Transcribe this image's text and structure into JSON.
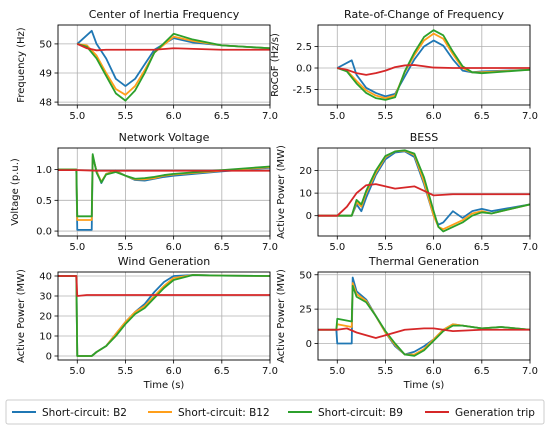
{
  "colors": {
    "B2": "#1f77b4",
    "B12": "#ff9f1a",
    "B9": "#2ca02c",
    "trip": "#d62728"
  },
  "legend": [
    {
      "label": "Short-circuit: B2",
      "color": "#1f77b4"
    },
    {
      "label": "Short-circuit: B12",
      "color": "#ff9f1a"
    },
    {
      "label": "Short-circuit: B9",
      "color": "#2ca02c"
    },
    {
      "label": "Generation trip",
      "color": "#d62728"
    }
  ],
  "chart_data": [
    {
      "type": "line",
      "title": "Center of Inertia Frequency",
      "xlabel": "",
      "ylabel": "Frequency (Hz)",
      "xlim": [
        4.8,
        7.0
      ],
      "ylim": [
        47.9,
        50.65
      ],
      "xticks": [
        5.0,
        5.5,
        6.0,
        6.5,
        7.0
      ],
      "yticks": [
        48,
        49,
        50
      ],
      "grid": true,
      "tick_decimals": 0,
      "series": [
        {
          "name": "Short-circuit: B2",
          "key": "B2",
          "x": [
            5.0,
            5.15,
            5.2,
            5.3,
            5.4,
            5.5,
            5.6,
            5.7,
            5.8,
            6.0,
            6.2,
            6.5,
            7.0
          ],
          "y": [
            50,
            50.45,
            50.0,
            49.5,
            48.8,
            48.55,
            48.8,
            49.3,
            49.8,
            50.2,
            50.05,
            49.95,
            49.85
          ]
        },
        {
          "name": "Short-circuit: B12",
          "key": "B12",
          "x": [
            5.0,
            5.1,
            5.2,
            5.3,
            5.4,
            5.5,
            5.6,
            5.7,
            5.8,
            6.0,
            6.2,
            6.5,
            7.0
          ],
          "y": [
            50,
            49.95,
            49.6,
            49.0,
            48.45,
            48.25,
            48.55,
            49.1,
            49.7,
            50.25,
            50.1,
            49.95,
            49.85
          ]
        },
        {
          "name": "Short-circuit: B9",
          "key": "B9",
          "x": [
            5.0,
            5.1,
            5.2,
            5.3,
            5.4,
            5.5,
            5.6,
            5.7,
            5.8,
            6.0,
            6.2,
            6.5,
            7.0
          ],
          "y": [
            50,
            49.9,
            49.5,
            48.9,
            48.3,
            48.05,
            48.4,
            49.0,
            49.7,
            50.35,
            50.15,
            49.95,
            49.85
          ]
        },
        {
          "name": "Generation trip",
          "key": "trip",
          "x": [
            5.0,
            5.1,
            5.2,
            5.3,
            5.5,
            5.8,
            6.0,
            6.5,
            7.0
          ],
          "y": [
            50,
            49.85,
            49.78,
            49.8,
            49.8,
            49.8,
            49.85,
            49.8,
            49.8
          ]
        }
      ]
    },
    {
      "type": "line",
      "title": "Rate-of-Change of Frequency",
      "xlabel": "",
      "ylabel": "RoCoF (Hz/s)",
      "xlim": [
        4.8,
        7.0
      ],
      "ylim": [
        -4.3,
        5.0
      ],
      "xticks": [
        5.0,
        5.5,
        6.0,
        6.5,
        7.0
      ],
      "yticks": [
        -2.5,
        0.0,
        2.5
      ],
      "grid": true,
      "tick_decimals": 1,
      "series": [
        {
          "name": "Short-circuit: B2",
          "key": "B2",
          "x": [
            5.0,
            5.15,
            5.2,
            5.3,
            5.4,
            5.5,
            5.6,
            5.7,
            5.8,
            5.9,
            6.0,
            6.1,
            6.2,
            6.3,
            6.4,
            6.5,
            7.0
          ],
          "y": [
            0,
            0.9,
            -0.8,
            -2.3,
            -2.9,
            -3.3,
            -3.0,
            -1.0,
            1.0,
            2.5,
            3.2,
            2.6,
            1.0,
            -0.3,
            -0.5,
            -0.4,
            -0.2
          ]
        },
        {
          "name": "Short-circuit: B12",
          "key": "B12",
          "x": [
            5.0,
            5.1,
            5.2,
            5.3,
            5.4,
            5.5,
            5.6,
            5.7,
            5.8,
            5.9,
            6.0,
            6.1,
            6.2,
            6.3,
            6.4,
            6.5,
            7.0
          ],
          "y": [
            0,
            -0.3,
            -1.5,
            -2.6,
            -3.2,
            -3.5,
            -3.2,
            -0.5,
            1.5,
            3.2,
            4.0,
            3.4,
            1.6,
            0,
            -0.5,
            -0.5,
            -0.2
          ]
        },
        {
          "name": "Short-circuit: B9",
          "key": "B9",
          "x": [
            5.0,
            5.1,
            5.2,
            5.3,
            5.4,
            5.5,
            5.6,
            5.7,
            5.8,
            5.9,
            6.0,
            6.1,
            6.2,
            6.3,
            6.4,
            6.5,
            7.0
          ],
          "y": [
            0,
            -0.4,
            -1.8,
            -2.9,
            -3.5,
            -3.7,
            -3.4,
            -0.4,
            1.8,
            3.6,
            4.4,
            3.8,
            1.9,
            0.2,
            -0.5,
            -0.6,
            -0.2
          ]
        },
        {
          "name": "Generation trip",
          "key": "trip",
          "x": [
            5.0,
            5.1,
            5.2,
            5.3,
            5.4,
            5.5,
            5.6,
            5.7,
            5.8,
            5.9,
            6.0,
            6.2,
            6.5,
            7.0
          ],
          "y": [
            0,
            -0.2,
            -0.6,
            -0.8,
            -0.6,
            -0.3,
            0.1,
            0.3,
            0.35,
            0.2,
            0.05,
            0,
            0,
            0
          ]
        }
      ]
    },
    {
      "type": "line",
      "title": "Network Voltage",
      "xlabel": "",
      "ylabel": "Voltage (p.u.)",
      "xlim": [
        4.8,
        7.0
      ],
      "ylim": [
        -0.08,
        1.35
      ],
      "xticks": [
        5.0,
        5.5,
        6.0,
        6.5,
        7.0
      ],
      "yticks": [
        0.0,
        0.5,
        1.0
      ],
      "grid": true,
      "tick_decimals": 1,
      "series": [
        {
          "name": "Short-circuit: B2",
          "key": "B2",
          "x": [
            4.8,
            4.99,
            5.0,
            5.15,
            5.16,
            5.2,
            5.25,
            5.3,
            5.4,
            5.5,
            5.6,
            5.7,
            5.8,
            5.9,
            6.0,
            6.5,
            7.0
          ],
          "y": [
            1.0,
            1.0,
            0.02,
            0.02,
            1.2,
            0.98,
            0.78,
            0.93,
            0.98,
            0.9,
            0.83,
            0.82,
            0.85,
            0.88,
            0.9,
            0.97,
            1.03
          ]
        },
        {
          "name": "Short-circuit: B12",
          "key": "B12",
          "x": [
            4.8,
            4.99,
            5.0,
            5.15,
            5.16,
            5.2,
            5.25,
            5.3,
            5.4,
            5.5,
            5.6,
            5.7,
            5.8,
            5.9,
            6.0,
            6.5,
            7.0
          ],
          "y": [
            1.0,
            1.0,
            0.18,
            0.18,
            1.22,
            0.97,
            0.8,
            0.93,
            0.97,
            0.9,
            0.84,
            0.84,
            0.86,
            0.9,
            0.92,
            0.98,
            1.04
          ]
        },
        {
          "name": "Short-circuit: B9",
          "key": "B9",
          "x": [
            4.8,
            4.99,
            5.0,
            5.15,
            5.16,
            5.2,
            5.25,
            5.3,
            5.4,
            5.5,
            5.6,
            5.7,
            5.8,
            5.9,
            6.0,
            6.5,
            7.0
          ],
          "y": [
            1.0,
            1.0,
            0.24,
            0.24,
            1.25,
            0.95,
            0.79,
            0.92,
            0.96,
            0.9,
            0.85,
            0.86,
            0.88,
            0.91,
            0.93,
            0.99,
            1.05
          ]
        },
        {
          "name": "Generation trip",
          "key": "trip",
          "x": [
            4.8,
            5.0,
            5.2,
            5.5,
            6.0,
            6.5,
            7.0
          ],
          "y": [
            0.99,
            0.99,
            0.98,
            0.98,
            0.98,
            0.98,
            0.98
          ]
        }
      ]
    },
    {
      "type": "line",
      "title": "BESS",
      "xlabel": "",
      "ylabel": "Active Power (MW)",
      "xlim": [
        4.8,
        7.0
      ],
      "ylim": [
        -9,
        30
      ],
      "xticks": [
        5.0,
        5.5,
        6.0,
        6.5,
        7.0
      ],
      "yticks": [
        0,
        10,
        20
      ],
      "grid": true,
      "tick_decimals": 0,
      "series": [
        {
          "name": "Short-circuit: B2",
          "key": "B2",
          "x": [
            4.8,
            5.0,
            5.15,
            5.2,
            5.25,
            5.3,
            5.4,
            5.5,
            5.6,
            5.7,
            5.8,
            5.9,
            6.0,
            6.05,
            6.1,
            6.2,
            6.3,
            6.4,
            6.5,
            6.6,
            7.0
          ],
          "y": [
            0,
            0,
            0,
            5,
            2,
            8,
            18,
            25,
            28,
            28.5,
            26,
            14,
            0,
            -4,
            -3,
            2,
            -1,
            2,
            3,
            2,
            5
          ]
        },
        {
          "name": "Short-circuit: B12",
          "key": "B12",
          "x": [
            4.8,
            5.0,
            5.15,
            5.2,
            5.25,
            5.3,
            5.4,
            5.5,
            5.6,
            5.7,
            5.8,
            5.9,
            6.0,
            6.05,
            6.1,
            6.2,
            6.3,
            6.4,
            6.5,
            6.6,
            7.0
          ],
          "y": [
            0,
            0,
            0,
            6,
            4,
            10,
            19,
            26,
            28.5,
            28.8,
            27,
            15,
            0,
            -5,
            -6,
            -4,
            -2,
            1,
            2,
            1,
            5
          ]
        },
        {
          "name": "Short-circuit: B9",
          "key": "B9",
          "x": [
            4.8,
            5.0,
            5.15,
            5.2,
            5.25,
            5.3,
            5.4,
            5.5,
            5.6,
            5.7,
            5.8,
            5.9,
            6.0,
            6.05,
            6.1,
            6.2,
            6.3,
            6.4,
            6.5,
            6.6,
            7.0
          ],
          "y": [
            0,
            0,
            0,
            7,
            5,
            11,
            20,
            26.5,
            28.5,
            29,
            27.5,
            17,
            2,
            -5,
            -7,
            -5,
            -3,
            0,
            1.5,
            1,
            5
          ]
        },
        {
          "name": "Generation trip",
          "key": "trip",
          "x": [
            4.8,
            5.0,
            5.1,
            5.2,
            5.3,
            5.4,
            5.5,
            5.6,
            5.7,
            5.8,
            5.9,
            6.0,
            6.2,
            6.5,
            7.0
          ],
          "y": [
            0,
            0,
            4,
            10,
            13.5,
            14,
            13,
            12,
            12.5,
            13,
            11,
            9,
            9.5,
            9.5,
            9.5
          ]
        }
      ]
    },
    {
      "type": "line",
      "title": "Wind Generation",
      "xlabel": "Time (s)",
      "ylabel": "Active Power (MW)",
      "xlim": [
        4.8,
        7.0
      ],
      "ylim": [
        -2,
        42
      ],
      "xticks": [
        5.0,
        5.5,
        6.0,
        6.5,
        7.0
      ],
      "yticks": [
        0,
        10,
        20,
        30,
        40
      ],
      "grid": true,
      "tick_decimals": 0,
      "series": [
        {
          "name": "Short-circuit: B2",
          "key": "B2",
          "x": [
            4.8,
            4.99,
            5.0,
            5.15,
            5.2,
            5.3,
            5.4,
            5.5,
            5.6,
            5.7,
            5.8,
            5.9,
            6.0,
            6.2,
            6.5,
            7.0
          ],
          "y": [
            40,
            40,
            0,
            0,
            2,
            5,
            11,
            17,
            22,
            26,
            32,
            37,
            40,
            40.5,
            40.2,
            40
          ]
        },
        {
          "name": "Short-circuit: B12",
          "key": "B12",
          "x": [
            4.8,
            4.99,
            5.0,
            5.15,
            5.2,
            5.3,
            5.4,
            5.5,
            5.6,
            5.7,
            5.8,
            5.9,
            6.0,
            6.2,
            6.5,
            7.0
          ],
          "y": [
            40,
            40,
            0,
            0,
            2,
            5,
            11,
            17,
            22,
            25,
            30,
            35,
            39,
            40.5,
            40.2,
            40
          ]
        },
        {
          "name": "Short-circuit: B9",
          "key": "B9",
          "x": [
            4.8,
            4.99,
            5.0,
            5.15,
            5.2,
            5.3,
            5.4,
            5.5,
            5.6,
            5.7,
            5.8,
            5.9,
            6.0,
            6.2,
            6.5,
            7.0
          ],
          "y": [
            40,
            40,
            0,
            0,
            2,
            5,
            10,
            16,
            21,
            24,
            29,
            34,
            38,
            40.5,
            40.2,
            40
          ]
        },
        {
          "name": "Generation trip",
          "key": "trip",
          "x": [
            4.8,
            4.99,
            5.0,
            5.1,
            5.5,
            6.0,
            6.5,
            7.0
          ],
          "y": [
            40,
            40,
            30,
            30.5,
            30.5,
            30.5,
            30.5,
            30.5
          ]
        }
      ]
    },
    {
      "type": "line",
      "title": "Thermal Generation",
      "xlabel": "Time (s)",
      "ylabel": "Active Power (MW)",
      "xlim": [
        4.8,
        7.0
      ],
      "ylim": [
        -12,
        52
      ],
      "xticks": [
        5.0,
        5.5,
        6.0,
        6.5,
        7.0
      ],
      "yticks": [
        0,
        25,
        50
      ],
      "grid": true,
      "tick_decimals": 0,
      "series": [
        {
          "name": "Short-circuit: B2",
          "key": "B2",
          "x": [
            4.8,
            4.99,
            5.0,
            5.15,
            5.16,
            5.2,
            5.3,
            5.4,
            5.5,
            5.6,
            5.7,
            5.8,
            5.9,
            6.0,
            6.1,
            6.2,
            6.3,
            6.5,
            6.7,
            7.0
          ],
          "y": [
            10,
            10,
            0,
            0,
            48,
            38,
            32,
            20,
            8,
            -2,
            -8,
            -6,
            -2,
            3,
            10,
            14,
            13,
            11,
            12,
            10
          ]
        },
        {
          "name": "Short-circuit: B12",
          "key": "B12",
          "x": [
            4.8,
            4.99,
            5.0,
            5.15,
            5.16,
            5.2,
            5.3,
            5.4,
            5.5,
            5.6,
            5.7,
            5.8,
            5.9,
            6.0,
            6.1,
            6.2,
            6.3,
            6.5,
            6.7,
            7.0
          ],
          "y": [
            10,
            10,
            14,
            12,
            44,
            36,
            31,
            20,
            8,
            -1,
            -8,
            -8,
            -4,
            3,
            10,
            14,
            13,
            11,
            12,
            10
          ]
        },
        {
          "name": "Short-circuit: B9",
          "key": "B9",
          "x": [
            4.8,
            4.99,
            5.0,
            5.15,
            5.16,
            5.2,
            5.3,
            5.4,
            5.5,
            5.6,
            5.7,
            5.8,
            5.9,
            6.0,
            6.1,
            6.2,
            6.3,
            6.5,
            6.7,
            7.0
          ],
          "y": [
            10,
            10,
            18,
            16,
            42,
            34,
            30,
            20,
            9,
            0,
            -8,
            -9,
            -5,
            2,
            9,
            13,
            13,
            11,
            12,
            10
          ]
        },
        {
          "name": "Generation trip",
          "key": "trip",
          "x": [
            4.8,
            5.0,
            5.1,
            5.2,
            5.3,
            5.4,
            5.5,
            5.7,
            5.9,
            6.0,
            6.2,
            6.5,
            7.0
          ],
          "y": [
            10,
            10,
            11,
            8,
            6,
            4,
            6,
            10,
            11,
            11,
            9,
            10,
            10
          ]
        }
      ]
    }
  ]
}
